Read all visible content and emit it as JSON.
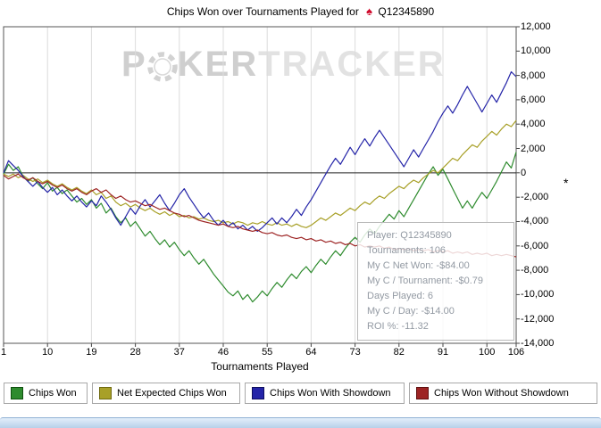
{
  "title": {
    "text_before": "Chips Won over Tournaments Played for",
    "site_icon_glyph": "♠",
    "player": "Q12345890"
  },
  "watermark": {
    "part1": "P",
    "part2": "KER",
    "part3": "TRACKER"
  },
  "axis": {
    "x_title": "Tournaments Played",
    "right_marker": "*"
  },
  "tooltip": {
    "lines": [
      "Player: Q12345890",
      "Tournaments: 106",
      "My C Net Won: -$84.00",
      "My C / Tournament: -$0.79",
      "Days Played: 6",
      "My C / Day: -$14.00",
      "ROI %: -11.32"
    ]
  },
  "legend": {
    "items": [
      {
        "label": "Chips Won",
        "color": "#2e8b2e",
        "border": "#0f4f0f"
      },
      {
        "label": "Net Expected Chips Won",
        "color": "#a8a028",
        "border": "#6f6a10"
      },
      {
        "label": "Chips Won With Showdown",
        "color": "#2424a8",
        "border": "#0f0f5f"
      },
      {
        "label": "Chips Won Without Showdown",
        "color": "#9d2424",
        "border": "#5f1010"
      }
    ]
  },
  "chart_data": {
    "type": "line",
    "title": "Chips Won over Tournaments Played for Q12345890",
    "xlabel": "Tournaments Played",
    "ylabel": "",
    "xlim": [
      1,
      106
    ],
    "ylim": [
      -14000,
      12000
    ],
    "x_ticks": [
      1,
      10,
      19,
      28,
      37,
      46,
      55,
      64,
      73,
      82,
      91,
      100,
      106
    ],
    "y_ticks": [
      12000,
      10000,
      8000,
      6000,
      4000,
      2000,
      0,
      -2000,
      -4000,
      -6000,
      -8000,
      -10000,
      -12000,
      -14000
    ],
    "grid": "vertical",
    "zero_line": true,
    "legend_position": "bottom",
    "series": [
      {
        "name": "Chips Won",
        "color": "#2e8b2e",
        "values": [
          -100,
          700,
          200,
          500,
          -300,
          -700,
          -400,
          -900,
          -1300,
          -800,
          -1500,
          -1200,
          -1700,
          -1400,
          -1900,
          -2400,
          -2100,
          -2600,
          -2200,
          -2900,
          -2500,
          -3300,
          -2900,
          -3600,
          -4100,
          -3700,
          -4400,
          -4000,
          -4600,
          -5200,
          -4800,
          -5400,
          -5900,
          -5500,
          -6100,
          -5700,
          -6300,
          -6800,
          -6400,
          -7000,
          -7500,
          -7100,
          -7700,
          -8300,
          -8800,
          -9300,
          -9800,
          -10100,
          -9700,
          -10400,
          -10000,
          -10600,
          -10200,
          -9700,
          -10100,
          -9500,
          -9000,
          -9400,
          -8800,
          -8300,
          -8700,
          -8100,
          -7700,
          -8200,
          -7600,
          -7100,
          -7500,
          -6900,
          -6400,
          -6800,
          -6200,
          -5700,
          -5300,
          -5700,
          -5100,
          -4600,
          -5000,
          -4400,
          -3900,
          -3400,
          -3800,
          -3100,
          -3600,
          -2900,
          -2200,
          -1500,
          -800,
          -100,
          500,
          -200,
          300,
          -500,
          -1300,
          -2100,
          -2900,
          -2300,
          -2900,
          -2200,
          -1600,
          -2100,
          -1400,
          -700,
          100,
          900,
          400,
          1700
        ]
      },
      {
        "name": "Net Expected Chips Won",
        "color": "#a8a028",
        "values": [
          -100,
          -300,
          -100,
          -400,
          -200,
          -500,
          -700,
          -500,
          -800,
          -600,
          -900,
          -1100,
          -900,
          -1200,
          -1400,
          -1200,
          -1500,
          -1700,
          -1400,
          -1800,
          -1600,
          -2100,
          -1900,
          -2400,
          -2700,
          -2500,
          -2800,
          -2600,
          -2900,
          -3100,
          -2900,
          -3200,
          -3400,
          -3200,
          -3500,
          -3300,
          -3600,
          -3500,
          -3700,
          -3600,
          -3800,
          -3700,
          -3900,
          -4000,
          -3900,
          -4100,
          -4000,
          -4200,
          -4000,
          -4100,
          -4300,
          -4100,
          -4200,
          -4000,
          -4200,
          -4300,
          -4100,
          -4300,
          -4200,
          -4400,
          -4200,
          -4400,
          -4500,
          -4300,
          -4000,
          -3700,
          -3900,
          -3600,
          -3300,
          -3500,
          -3200,
          -2900,
          -3100,
          -2700,
          -2400,
          -2600,
          -2200,
          -1900,
          -2100,
          -1700,
          -1400,
          -1100,
          -1300,
          -900,
          -600,
          -800,
          -400,
          -100,
          200,
          0,
          400,
          800,
          1200,
          1000,
          1500,
          1900,
          2300,
          2100,
          2600,
          3000,
          3400,
          3100,
          3600,
          4000,
          3800,
          4300
        ]
      },
      {
        "name": "Chips Won With Showdown",
        "color": "#2424a8",
        "values": [
          0,
          1000,
          600,
          200,
          -300,
          -700,
          -1100,
          -700,
          -1200,
          -1600,
          -1200,
          -1800,
          -1400,
          -1900,
          -2300,
          -1900,
          -2400,
          -2800,
          -2300,
          -2700,
          -1900,
          -2400,
          -3000,
          -3700,
          -4300,
          -3600,
          -2900,
          -3400,
          -2700,
          -2200,
          -2800,
          -2300,
          -1800,
          -2500,
          -3100,
          -2500,
          -1800,
          -1300,
          -2000,
          -2600,
          -3200,
          -3700,
          -3300,
          -3900,
          -4300,
          -3900,
          -4400,
          -4100,
          -4600,
          -4300,
          -4700,
          -4400,
          -4800,
          -4500,
          -4100,
          -3700,
          -4200,
          -3700,
          -4100,
          -3600,
          -3000,
          -3500,
          -2800,
          -2200,
          -1500,
          -800,
          -100,
          600,
          1200,
          700,
          1400,
          2100,
          1500,
          2200,
          2800,
          2200,
          2900,
          3500,
          2900,
          2300,
          1700,
          1100,
          500,
          1200,
          1900,
          1300,
          2000,
          2700,
          3400,
          4200,
          4900,
          5500,
          4900,
          5600,
          6400,
          7100,
          6400,
          5700,
          5000,
          5700,
          6400,
          5800,
          6600,
          7400,
          8300,
          7900
        ]
      },
      {
        "name": "Chips Won Without Showdown",
        "color": "#9d2424",
        "values": [
          -200,
          -500,
          -300,
          -100,
          -400,
          -600,
          -400,
          -700,
          -900,
          -700,
          -1000,
          -1200,
          -1000,
          -1300,
          -1500,
          -1300,
          -1600,
          -1800,
          -1500,
          -1300,
          -1600,
          -1400,
          -1800,
          -2100,
          -1900,
          -2200,
          -2400,
          -2300,
          -2500,
          -2700,
          -2600,
          -2800,
          -3000,
          -2900,
          -3100,
          -3300,
          -3400,
          -3600,
          -3500,
          -3700,
          -3900,
          -4000,
          -4100,
          -4200,
          -4300,
          -4200,
          -4400,
          -4500,
          -4400,
          -4600,
          -4700,
          -4800,
          -4700,
          -4900,
          -5000,
          -4900,
          -5100,
          -5200,
          -5100,
          -5300,
          -5400,
          -5300,
          -5500,
          -5400,
          -5600,
          -5500,
          -5700,
          -5600,
          -5800,
          -5700,
          -5900,
          -5800,
          -6000,
          -5900,
          -6100,
          -6000,
          -6100,
          -6000,
          -6200,
          -6100,
          -6300,
          -6200,
          -6300,
          -6200,
          -6400,
          -6300,
          -6400,
          -6300,
          -6500,
          -6400,
          -6500,
          -6400,
          -6600,
          -6500,
          -6600,
          -6500,
          -6700,
          -6600,
          -6700,
          -6600,
          -6800,
          -6700,
          -6800,
          -6700,
          -6800,
          -6900
        ]
      }
    ]
  }
}
